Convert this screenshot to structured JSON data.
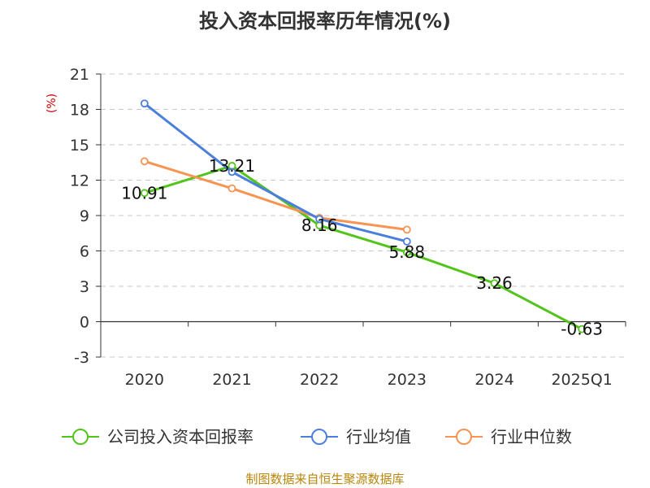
{
  "chart_data": {
    "type": "line",
    "title": "投入资本回报率历年情况(%)",
    "ylabel": "(%)",
    "categories": [
      "2020",
      "2021",
      "2022",
      "2023",
      "2024",
      "2025Q1"
    ],
    "ylim": [
      -3,
      21
    ],
    "yticks": [
      -3,
      0,
      3,
      6,
      9,
      12,
      15,
      18,
      21
    ],
    "grid": true,
    "legend_position": "bottom",
    "series": [
      {
        "name": "公司投入资本回报率",
        "color": "#52c41a",
        "values": [
          10.91,
          13.21,
          8.16,
          5.88,
          3.26,
          -0.63
        ],
        "labels": [
          "10.91",
          "13.21",
          "8.16",
          "5.88",
          "3.26",
          "-0.63"
        ]
      },
      {
        "name": "行业均值",
        "color": "#4a7fdc",
        "values": [
          18.5,
          12.7,
          8.7,
          6.8,
          null,
          null
        ]
      },
      {
        "name": "行业中位数",
        "color": "#f79451",
        "values": [
          13.6,
          11.3,
          8.8,
          7.8,
          null,
          null
        ]
      }
    ]
  },
  "source": "制图数据来自恒生聚源数据库"
}
